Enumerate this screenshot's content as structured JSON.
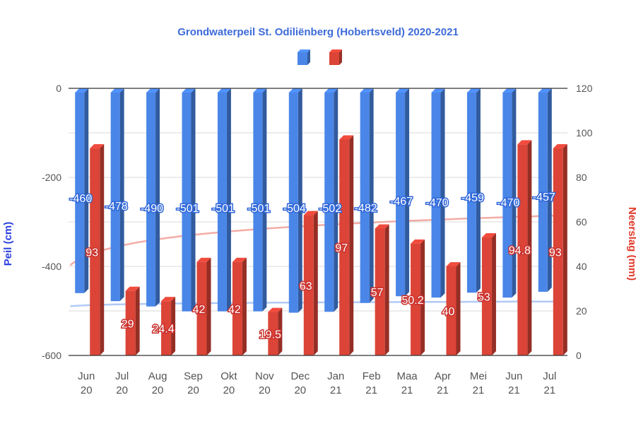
{
  "chart_data": {
    "type": "bar",
    "title": "Grondwaterpeil St. Odiliënberg (Hobertsveld) 2020-2021",
    "categories": [
      [
        "Jun",
        "20"
      ],
      [
        "Jul",
        "20"
      ],
      [
        "Aug",
        "20"
      ],
      [
        "Sep",
        "20"
      ],
      [
        "Okt",
        "20"
      ],
      [
        "Nov",
        "20"
      ],
      [
        "Dec",
        "20"
      ],
      [
        "Jan",
        "21"
      ],
      [
        "Feb",
        "21"
      ],
      [
        "Maa",
        "21"
      ],
      [
        "Apr",
        "21"
      ],
      [
        "Mei",
        "21"
      ],
      [
        "Jun",
        "21"
      ],
      [
        "Jul",
        "21"
      ]
    ],
    "ylabel_left": "Peil (cm)",
    "ylabel_right": "Neerslag (mm)",
    "ylim_left": [
      -600,
      0
    ],
    "yticks_left": [
      0,
      -200,
      -400,
      -600
    ],
    "ylim_right": [
      0,
      120
    ],
    "yticks_right": [
      120,
      100,
      80,
      60,
      40,
      20,
      0
    ],
    "grid": true,
    "legend_position": "top",
    "series": [
      {
        "axis": "left",
        "color": "#4a86e8",
        "values": [
          -460,
          -478,
          -490,
          -501,
          -501,
          -501,
          -504,
          -502,
          -482,
          -467,
          -470,
          -459,
          -470,
          -457
        ],
        "labels": [
          "-460",
          "-478",
          "-490",
          "-501",
          "-501",
          "-501",
          "-504",
          "-502",
          "-482",
          "-467",
          "-470",
          "-459",
          "-470",
          "-457"
        ]
      },
      {
        "axis": "right",
        "color": "#db4437",
        "values": [
          93,
          29,
          24.4,
          42,
          42,
          19.5,
          63,
          97,
          57,
          50.2,
          40,
          53,
          94.8,
          93
        ],
        "labels": [
          "93",
          "29",
          "24.4",
          "42",
          "42",
          "19.5",
          "63",
          "97",
          "57",
          "50.2",
          "40",
          "53",
          "94.8",
          "93"
        ]
      }
    ],
    "trendlines": [
      {
        "series": 0,
        "color": "#a9c4f5",
        "type": "logarithmic"
      },
      {
        "series": 1,
        "color": "#f2a39b",
        "type": "logarithmic"
      }
    ]
  }
}
